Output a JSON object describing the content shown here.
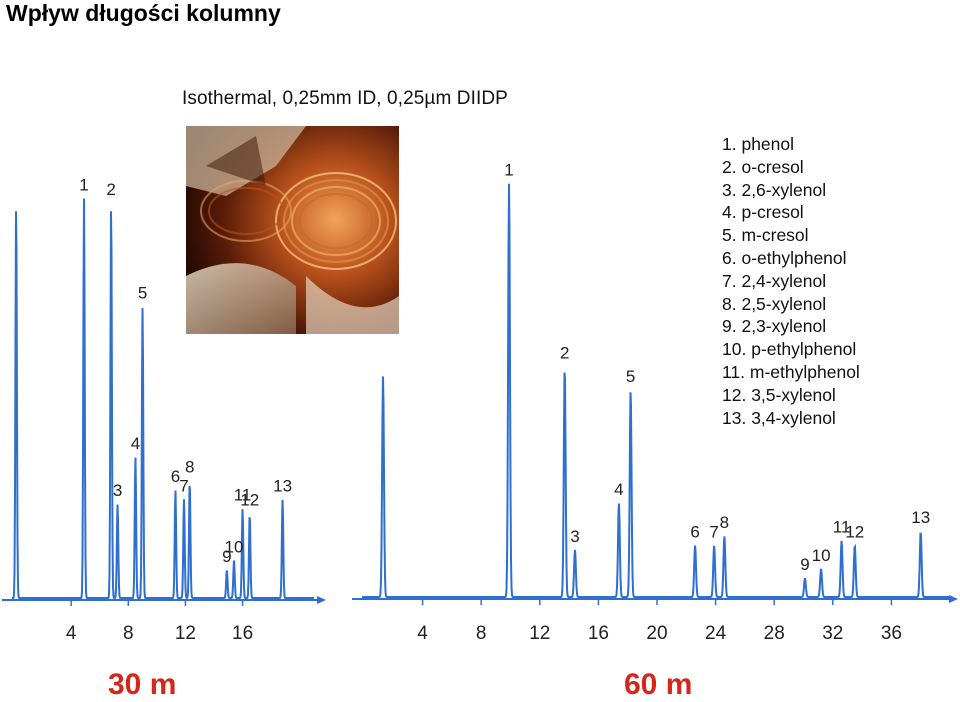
{
  "slide_title": "Wpływ długości kolumny",
  "subtitle": "Isothermal, 0,25mm ID, 0,25µm DIIDP",
  "photo_icon": "gc-capillary-column-coil-photo",
  "legend": [
    "1.  phenol",
    "2.  o-cresol",
    "3.  2,6-xylenol",
    "4.  p-cresol",
    "5.  m-cresol",
    "6.  o-ethylphenol",
    "7.  2,4-xylenol",
    "8.  2,5-xylenol",
    "9.  2,3-xylenol",
    "10. p-ethylphenol",
    "11. m-ethylphenol",
    "12. 3,5-xylenol",
    "13. 3,4-xylenol"
  ],
  "colors": {
    "trace": "#2f6fd0",
    "axis": "#2f6fd0",
    "length_label": "#d6261c"
  },
  "chart_data": [
    {
      "type": "line",
      "column_length_label": "30 m",
      "xlim": [
        0,
        21
      ],
      "xticks": [
        4,
        8,
        12,
        16
      ],
      "grid": false,
      "solvent_peak": {
        "x": 0.15,
        "height": 0.84
      },
      "peaks": [
        {
          "label": "1",
          "x": 4.9,
          "height": 0.85
        },
        {
          "label": "2",
          "x": 6.8,
          "height": 0.84
        },
        {
          "label": "3",
          "x": 7.25,
          "height": 0.2
        },
        {
          "label": "4",
          "x": 8.5,
          "height": 0.3
        },
        {
          "label": "5",
          "x": 9.0,
          "height": 0.62
        },
        {
          "label": "6",
          "x": 11.3,
          "height": 0.23
        },
        {
          "label": "7",
          "x": 11.9,
          "height": 0.21
        },
        {
          "label": "8",
          "x": 12.3,
          "height": 0.25
        },
        {
          "label": "9",
          "x": 14.9,
          "height": 0.06
        },
        {
          "label": "10",
          "x": 15.4,
          "height": 0.08
        },
        {
          "label": "11",
          "x": 16.0,
          "height": 0.19
        },
        {
          "label": "12",
          "x": 16.5,
          "height": 0.18
        },
        {
          "label": "13",
          "x": 18.8,
          "height": 0.21
        }
      ]
    },
    {
      "type": "line",
      "column_length_label": "60 m",
      "xlim": [
        0,
        40
      ],
      "xticks": [
        4,
        8,
        12,
        16,
        20,
        24,
        28,
        32,
        36
      ],
      "grid": false,
      "solvent_peak": {
        "x": 1.3,
        "height": 0.47
      },
      "peaks": [
        {
          "label": "1",
          "x": 9.9,
          "height": 0.88
        },
        {
          "label": "2",
          "x": 13.7,
          "height": 0.49
        },
        {
          "label": "3",
          "x": 14.4,
          "height": 0.1
        },
        {
          "label": "4",
          "x": 17.4,
          "height": 0.2
        },
        {
          "label": "5",
          "x": 18.2,
          "height": 0.44
        },
        {
          "label": "6",
          "x": 22.6,
          "height": 0.11
        },
        {
          "label": "7",
          "x": 23.9,
          "height": 0.11
        },
        {
          "label": "8",
          "x": 24.6,
          "height": 0.13
        },
        {
          "label": "9",
          "x": 30.1,
          "height": 0.04
        },
        {
          "label": "10",
          "x": 31.2,
          "height": 0.06
        },
        {
          "label": "11",
          "x": 32.6,
          "height": 0.12
        },
        {
          "label": "12",
          "x": 33.5,
          "height": 0.11
        },
        {
          "label": "13",
          "x": 38.0,
          "height": 0.14
        }
      ]
    }
  ]
}
